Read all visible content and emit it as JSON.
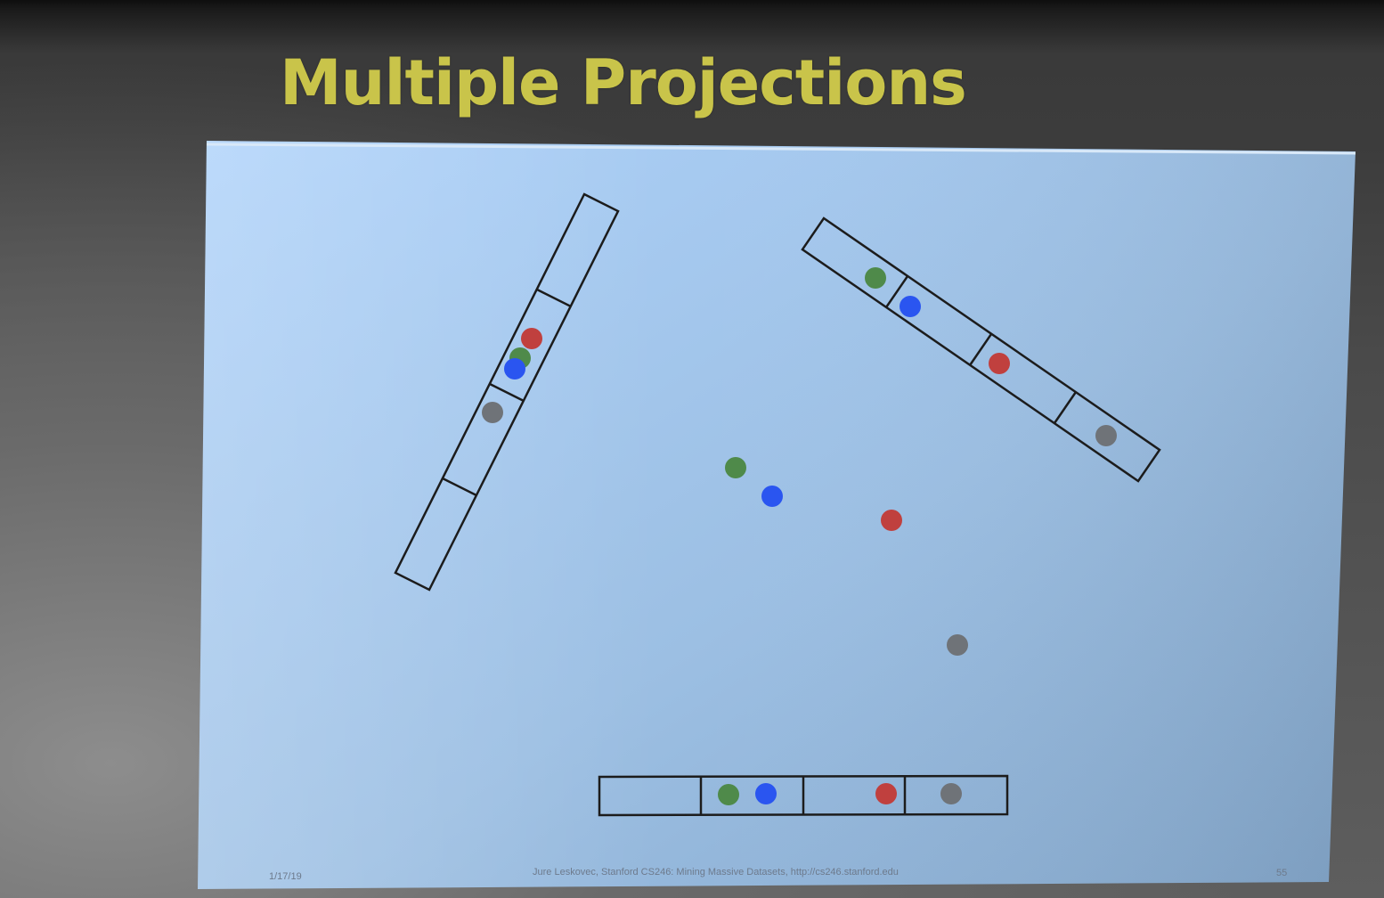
{
  "slide": {
    "title": "Multiple Projections",
    "footer": {
      "date": "1/17/19",
      "credit": "Jure Leskovec, Stanford CS246: Mining Massive Datasets, http://cs246.stanford.edu",
      "page": "55"
    }
  },
  "colors": {
    "title": "#c9c44a",
    "slide_background_light": "#aacdf5",
    "slide_background_dark": "#86a8cc",
    "bucket_outline": "#1c1c1c",
    "point_green": "#4f8a4a",
    "point_blue": "#2a55f0",
    "point_red": "#c0403e",
    "point_gray": "#6f7378"
  },
  "diagram": {
    "points": [
      {
        "name": "green-point",
        "color": "green"
      },
      {
        "name": "blue-point",
        "color": "blue"
      },
      {
        "name": "red-point",
        "color": "red"
      },
      {
        "name": "gray-point",
        "color": "gray"
      }
    ],
    "projections": [
      {
        "name": "horizontal-projection",
        "bucket_count": 4,
        "buckets": [
          [],
          [
            "green",
            "blue"
          ],
          [
            "red"
          ],
          [
            "gray"
          ]
        ]
      },
      {
        "name": "steep-projection",
        "bucket_count": 4,
        "buckets": [
          [],
          [
            "gray"
          ],
          [
            "red",
            "green",
            "blue"
          ],
          []
        ]
      },
      {
        "name": "diagonal-projection",
        "bucket_count": 4,
        "buckets": [
          [
            "green"
          ],
          [
            "blue"
          ],
          [
            "red"
          ],
          [
            "gray"
          ]
        ]
      }
    ]
  }
}
